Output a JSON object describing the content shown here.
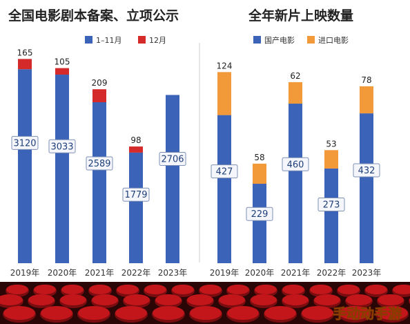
{
  "colors": {
    "blue": "#3b63b8",
    "red": "#d42a2a",
    "orange": "#f29a3a",
    "box_fill": "#f4f6fb",
    "box_stroke": "#7d8fb5",
    "seat": "#c2161b",
    "seat_dark": "#7a0d10"
  },
  "watermark": "手动动手游",
  "chart_data": [
    {
      "type": "bar",
      "stacked": true,
      "title": "全国电影剧本备案、立项公示",
      "categories": [
        "2019年",
        "2020年",
        "2021年",
        "2022年",
        "2023年"
      ],
      "series": [
        {
          "name": "1–11月",
          "color": "#3b63b8",
          "values": [
            3120,
            3033,
            2589,
            1779,
            2706
          ]
        },
        {
          "name": "12月",
          "color": "#d42a2a",
          "values": [
            165,
            105,
            209,
            98,
            null
          ]
        }
      ],
      "legend_position": "top-center",
      "grid": false
    },
    {
      "type": "bar",
      "stacked": true,
      "title": "全年新片上映数量",
      "categories": [
        "2019年",
        "2020年",
        "2021年",
        "2022年",
        "2023年"
      ],
      "series": [
        {
          "name": "国产电影",
          "color": "#3b63b8",
          "values": [
            427,
            229,
            460,
            273,
            432
          ]
        },
        {
          "name": "进口电影",
          "color": "#f29a3a",
          "values": [
            124,
            58,
            62,
            53,
            78
          ]
        }
      ],
      "legend_position": "top-center",
      "grid": false
    }
  ]
}
